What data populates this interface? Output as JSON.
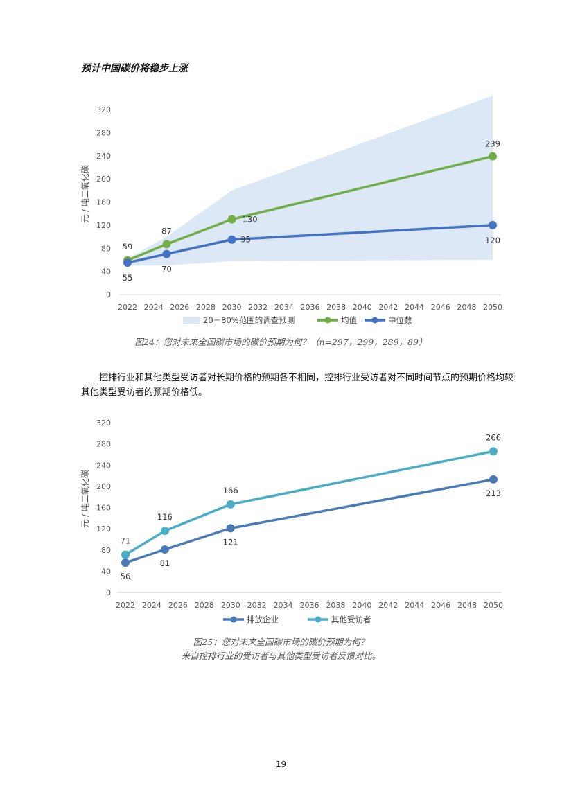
{
  "page": {
    "heading": "预计中国碳价将稳步上涨",
    "paragraph": "控排行业和其他类型受访者对长期价格的预期各不相同，控排行业受访者对不同时间节点的预期价格均较其他类型受访者的预期价格低。",
    "page_number": "19"
  },
  "captions": {
    "fig24": "图24：您对未来全国碳市场的碳价预期为何？（n=297，299，289，89）",
    "fig25_line1": "图25：您对未来全国碳市场的碳价预期为何？",
    "fig25_line2": "来自控排行业的受访者与其他类型受访者反馈对比。"
  },
  "chart_data": [
    {
      "type": "line",
      "title": "",
      "xlabel": "",
      "ylabel": "元 / 吨二氧化碳",
      "xlim": [
        2022,
        2050
      ],
      "ylim": [
        0,
        320
      ],
      "xticks": [
        2022,
        2024,
        2026,
        2028,
        2030,
        2032,
        2034,
        2036,
        2038,
        2040,
        2042,
        2044,
        2046,
        2048,
        2050
      ],
      "yticks": [
        0,
        40,
        80,
        120,
        160,
        200,
        240,
        280,
        320
      ],
      "band": {
        "name": "20－80%范围的调查预测",
        "color": "#dce8f6",
        "x": [
          2022,
          2025,
          2030,
          2050
        ],
        "low": [
          50,
          50,
          58,
          60
        ],
        "high": [
          62,
          100,
          180,
          344
        ]
      },
      "series": [
        {
          "name": "均值",
          "color": "#70ad47",
          "x": [
            2022,
            2025,
            2030,
            2050
          ],
          "values": [
            59,
            87,
            130,
            239
          ],
          "labels": [
            "59",
            "87",
            "130",
            "239"
          ]
        },
        {
          "name": "中位数",
          "color": "#4472c4",
          "x": [
            2022,
            2025,
            2030,
            2050
          ],
          "values": [
            55,
            70,
            95,
            120
          ],
          "labels": [
            "55",
            "70",
            "95",
            "120"
          ]
        }
      ],
      "legend": [
        "20－80%范围的调查预测",
        "均值",
        "中位数"
      ],
      "legend_position": "bottom"
    },
    {
      "type": "line",
      "title": "",
      "xlabel": "",
      "ylabel": "元 / 吨二氧化碳",
      "xlim": [
        2022,
        2050
      ],
      "ylim": [
        0,
        320
      ],
      "xticks": [
        2022,
        2024,
        2026,
        2028,
        2030,
        2032,
        2034,
        2036,
        2038,
        2040,
        2042,
        2044,
        2046,
        2048,
        2050
      ],
      "yticks": [
        0,
        40,
        80,
        120,
        160,
        200,
        240,
        280,
        320
      ],
      "series": [
        {
          "name": "排放企业",
          "color": "#4a7ab5",
          "x": [
            2022,
            2025,
            2030,
            2050
          ],
          "values": [
            56,
            81,
            121,
            213
          ],
          "labels": [
            "56",
            "81",
            "121",
            "213"
          ]
        },
        {
          "name": "其他受访者",
          "color": "#4bacc6",
          "x": [
            2022,
            2025,
            2030,
            2050
          ],
          "values": [
            71,
            116,
            166,
            266
          ],
          "labels": [
            "71",
            "116",
            "166",
            "266"
          ]
        }
      ],
      "legend": [
        "排放企业",
        "其他受访者"
      ],
      "legend_position": "bottom"
    }
  ]
}
